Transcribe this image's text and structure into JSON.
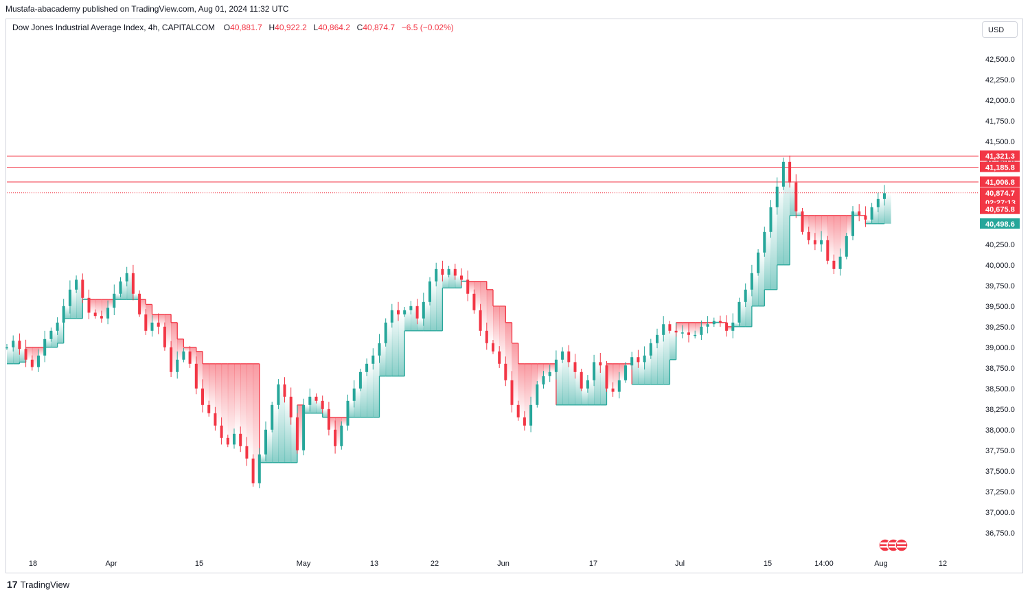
{
  "header": {
    "publisher": "Mustafa-abacademy published on TradingView.com, Aug 01, 2024 11:32 UTC",
    "symbol": "Dow Jones Industrial Average Index, 4h, CAPITALCOM",
    "open_label": "O",
    "open": "40,881.7",
    "high_label": "H",
    "high": "40,922.2",
    "low_label": "L",
    "low": "40,864.2",
    "close_label": "C",
    "close": "40,874.7",
    "change": "−6.5 (−0.02%)"
  },
  "currency_button": "USD",
  "brand": {
    "logo": "17",
    "name": "TradingView"
  },
  "colors": {
    "up": "#26a69a",
    "down": "#f23645",
    "resistance": "#f23645"
  },
  "chart_data": {
    "type": "candlestick",
    "y_axis": {
      "ticks": [
        "42,500.0",
        "42,250.0",
        "42,000.0",
        "41,750.0",
        "41,500.0",
        "41,250.0",
        "41,000.0",
        "40,750.0",
        "40,500.0",
        "40,250.0",
        "40,000.0",
        "39,750.0",
        "39,500.0",
        "39,250.0",
        "39,000.0",
        "38,750.0",
        "38,500.0",
        "38,250.0",
        "38,000.0",
        "37,750.0",
        "37,500.0",
        "37,250.0",
        "37,000.0",
        "36,750.0"
      ],
      "tick_values": [
        42500,
        42250,
        42000,
        41750,
        41500,
        41250,
        41000,
        40750,
        40500,
        40250,
        40000,
        39750,
        39500,
        39250,
        39000,
        38750,
        38500,
        38250,
        38000,
        37750,
        37500,
        37250,
        37000,
        36750
      ],
      "range": [
        36650,
        42780
      ]
    },
    "x_axis": {
      "ticks": [
        "18",
        "Apr",
        "15",
        "May",
        "13",
        "22",
        "Jun",
        "17",
        "Jul",
        "15",
        "14:00",
        "Aug",
        "12"
      ]
    },
    "price_tags": [
      {
        "label": "41,321.3",
        "value": 41321.3,
        "kind": "line"
      },
      {
        "label": "41,185.8",
        "value": 41185.8,
        "kind": "line"
      },
      {
        "label": "41,006.8",
        "value": 41006.8,
        "kind": "line"
      },
      {
        "label": "40,874.7",
        "value": 40874.7,
        "kind": "last"
      },
      {
        "label": "02:27:13",
        "kind": "countdown"
      },
      {
        "label": "40,675.8",
        "value": 40675.8,
        "kind": "stop-down"
      },
      {
        "label": "40,498.6",
        "value": 40498.6,
        "kind": "stop-up"
      }
    ],
    "last_price": 40874.7,
    "series": [
      {
        "name": "close",
        "values": [
          39000,
          39080,
          38980,
          38850,
          38760,
          38900,
          39100,
          39200,
          39300,
          39500,
          39700,
          39820,
          39600,
          39420,
          39380,
          39350,
          39480,
          39650,
          39800,
          39900,
          39650,
          39400,
          39200,
          39300,
          39250,
          39000,
          38700,
          38850,
          38950,
          38800,
          38500,
          38300,
          38200,
          38050,
          37900,
          37820,
          37950,
          37800,
          37650,
          37350,
          37700,
          38000,
          38300,
          38550,
          38400,
          38150,
          37750,
          38300,
          38400,
          38350,
          38250,
          38000,
          37800,
          38050,
          38350,
          38500,
          38700,
          38800,
          38900,
          39050,
          39300,
          39450,
          39400,
          39450,
          39500,
          39350,
          39550,
          39800,
          39950,
          39880,
          39950,
          39870,
          39820,
          39650,
          39450,
          39200,
          39050,
          38950,
          38800,
          38600,
          38300,
          38150,
          38050,
          38300,
          38550,
          38650,
          38700,
          38850,
          38950,
          38820,
          38700,
          38500,
          38600,
          38820,
          38780,
          38500,
          38460,
          38600,
          38780,
          38880,
          38820,
          38900,
          39050,
          39150,
          39280,
          39200,
          39180,
          39180,
          39150,
          39150,
          39250,
          39280,
          39320,
          39300,
          39200,
          39300,
          39550,
          39700,
          39900,
          40150,
          40400,
          40700,
          40950,
          41250,
          41000,
          40650,
          40400,
          40300,
          40250,
          40300,
          40050,
          39950,
          40100,
          40350,
          40650,
          40600,
          40550,
          40700,
          40800,
          40870
        ]
      },
      {
        "name": "trailing-stop",
        "values": [
          38800,
          38800,
          38820,
          39000,
          39000,
          39000,
          39000,
          39000,
          39050,
          39350,
          39350,
          39350,
          39580,
          39580,
          39580,
          39580,
          39580,
          39580,
          39580,
          39580,
          39580,
          39580,
          39520,
          39400,
          39400,
          39400,
          39300,
          39100,
          39000,
          39000,
          38950,
          38800,
          38800,
          38800,
          38800,
          38800,
          38800,
          38800,
          38800,
          38800,
          37600,
          37600,
          37600,
          37600,
          37600,
          37600,
          38300,
          38200,
          38200,
          38200,
          38150,
          38150,
          38150,
          38150,
          38150,
          38150,
          38150,
          38150,
          38150,
          38650,
          38650,
          38650,
          38650,
          39200,
          39200,
          39200,
          39200,
          39200,
          39200,
          39720,
          39720,
          39720,
          39800,
          39800,
          39800,
          39800,
          39700,
          39500,
          39500,
          39300,
          39050,
          38800,
          38800,
          38800,
          38800,
          38800,
          38800,
          38300,
          38300,
          38300,
          38300,
          38300,
          38300,
          38300,
          38300,
          38800,
          38800,
          38800,
          38800,
          38550,
          38550,
          38550,
          38550,
          38550,
          38550,
          38850,
          39300,
          39300,
          39300,
          39300,
          39300,
          39300,
          39300,
          39300,
          39250,
          39250,
          39250,
          39250,
          39500,
          39500,
          39700,
          39700,
          40000,
          40000,
          40600,
          40600,
          40600,
          40600,
          40600,
          40600,
          40600,
          40600,
          40600,
          40600,
          40600,
          40600,
          40500,
          40500,
          40500,
          40500
        ]
      }
    ]
  }
}
